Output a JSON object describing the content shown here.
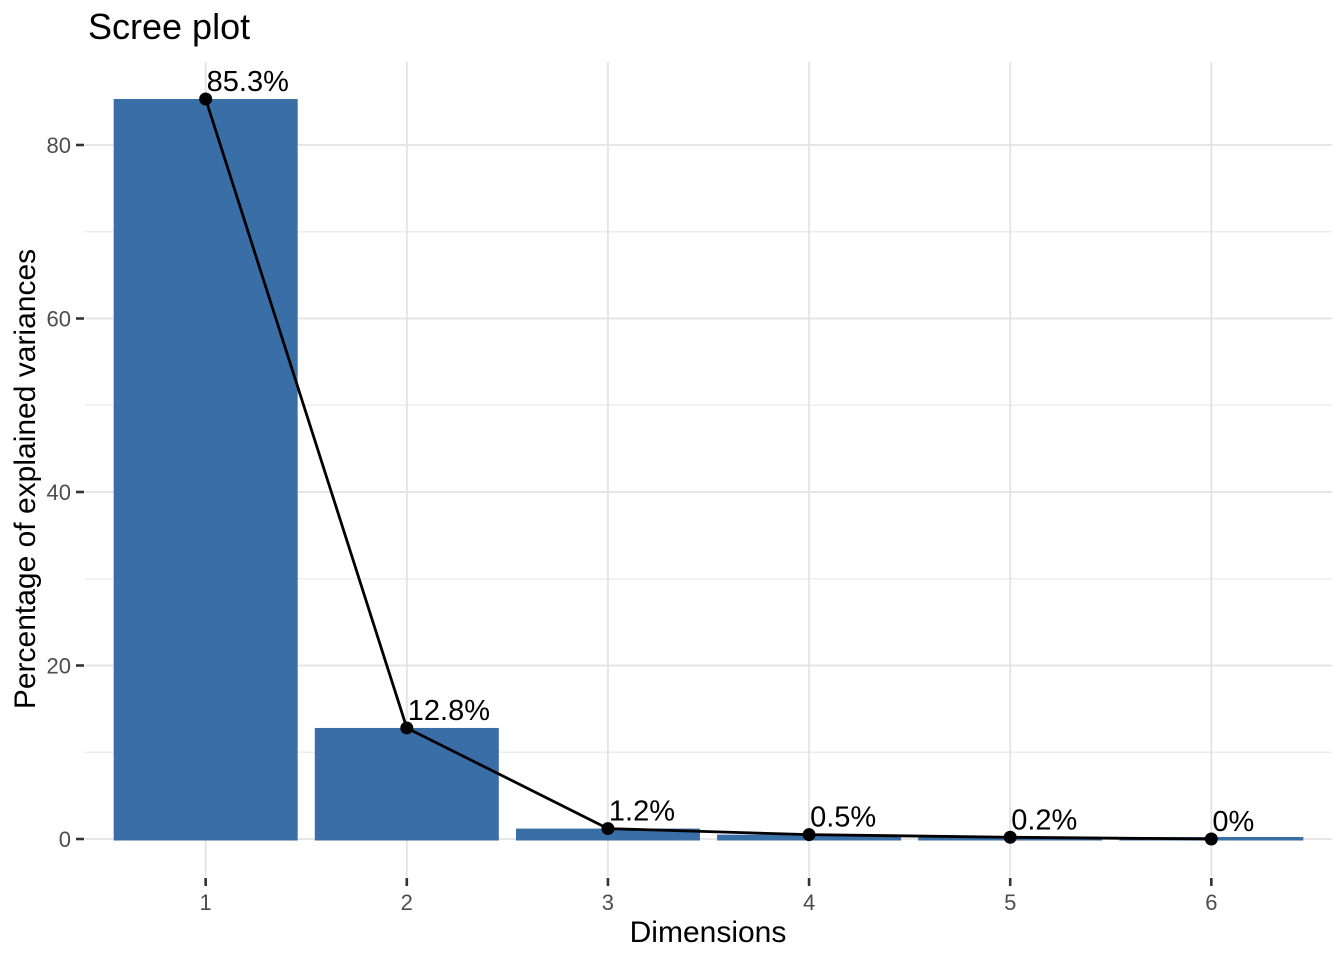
{
  "chart_data": {
    "type": "bar",
    "subtype": "scree-plot-with-line-overlay",
    "title": "Scree plot",
    "xlabel": "Dimensions",
    "ylabel": "Percentage of explained variances",
    "categories": [
      "1",
      "2",
      "3",
      "4",
      "5",
      "6"
    ],
    "values": [
      85.3,
      12.8,
      1.2,
      0.5,
      0.2,
      0
    ],
    "point_labels": [
      "85.3%",
      "12.8%",
      "1.2%",
      "0.5%",
      "0.2%",
      "0%"
    ],
    "y_ticks": [
      0,
      20,
      40,
      60,
      80
    ],
    "y_tick_labels": [
      "0",
      "20",
      "40",
      "60",
      "80"
    ],
    "y_minor_ticks": [
      10,
      30,
      50,
      70
    ],
    "ylim": [
      -4.3,
      89.6
    ],
    "grid": true,
    "legend": false,
    "colors": {
      "bar_fill": "#3A6EA6",
      "line": "#000000",
      "point": "#000000",
      "label_text": "#000000",
      "grid_major": "#E3E3E3",
      "grid_minor": "#EDEDED",
      "tick_mark": "#333333",
      "tick_label": "#4D4D4D",
      "background": "#FFFFFF"
    }
  }
}
